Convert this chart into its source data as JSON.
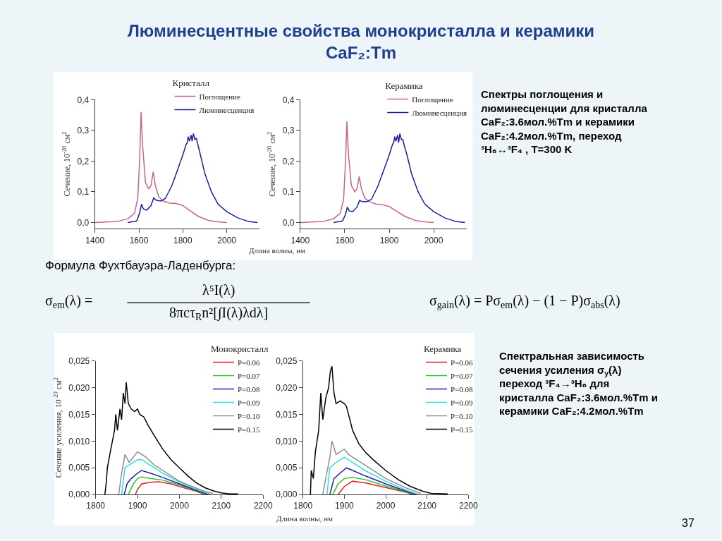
{
  "chart_data": [
    {
      "type": "other",
      "title": "Люминесцентные свойства монокристалла и керамики\nCaF₂:Tm",
      "annotations": [
        "Спектры поглощения и люминесценции для кристалла CaF₂:3.6мол.%Tm и керамики CaF₂:4.2мол.%Tm, переход ³H₆↔³F₄ , T=300 K",
        "Формула Фухтбауэра-Ладенбурга:",
        "σ$_{em}$(λ) =",
        "λ⁵I(λ)",
        "8πcτ$_{R}$n²[∫I(λ)λdλ]",
        "σ$_{gain}$(λ) = Pσ$_{em}$(λ) − (1 − P)σ$_{abs}$(λ)",
        "Спектральная зависимость сечения усиления σ$_{у}$(λ) переход ³F₄→³H₆ для кристалла CaF₂:3.6мол.%Tm и керамики CaF₂:4.2мол.%Tm",
        "37"
      ]
    },
    {
      "type": "line",
      "xlabel": "Длина волны, нм",
      "ylabel": "Сечение, 10$^{-20}$ см$^{2}$",
      "legend_title": "Кристалл",
      "legend": "top right",
      "xlim": [
        1400,
        2150
      ],
      "ylim": [
        -0.02,
        0.4
      ],
      "xticks": [
        1400,
        1600,
        1800,
        2000
      ],
      "yticks": [
        {
          "value": 0,
          "label": "0,0"
        },
        {
          "value": 0.1,
          "label": "0,1"
        },
        {
          "value": 0.2,
          "label": "0,2"
        },
        {
          "value": 0.3,
          "label": "0,3"
        },
        {
          "value": 0.4,
          "label": "0,4"
        }
      ],
      "series": [
        {
          "name": "Поглощение",
          "color": "#c8648c",
          "x": [
            1400,
            1500,
            1550,
            1580,
            1595,
            1603,
            1610,
            1617,
            1630,
            1645,
            1655,
            1665,
            1675,
            1690,
            1710,
            1740,
            1770,
            1800,
            1830,
            1870,
            1920,
            1960,
            2000
          ],
          "values": [
            0,
            0.003,
            0.012,
            0.03,
            0.08,
            0.2,
            0.36,
            0.25,
            0.13,
            0.11,
            0.12,
            0.165,
            0.12,
            0.085,
            0.07,
            0.063,
            0.062,
            0.055,
            0.04,
            0.02,
            0.006,
            0.002,
            0
          ]
        },
        {
          "name": "Люминесценция",
          "color": "#1c1c9c",
          "x": [
            1550,
            1590,
            1603,
            1612,
            1620,
            1635,
            1655,
            1667,
            1680,
            1700,
            1720,
            1750,
            1780,
            1800,
            1815,
            1820,
            1825,
            1830,
            1838,
            1842,
            1848,
            1855,
            1862,
            1868,
            1880,
            1900,
            1930,
            1960,
            2000,
            2050,
            2100,
            2140
          ],
          "values": [
            0,
            0.005,
            0.03,
            0.06,
            0.045,
            0.04,
            0.055,
            0.08,
            0.072,
            0.07,
            0.078,
            0.12,
            0.18,
            0.22,
            0.255,
            0.26,
            0.28,
            0.265,
            0.285,
            0.265,
            0.29,
            0.27,
            0.275,
            0.255,
            0.22,
            0.16,
            0.1,
            0.06,
            0.035,
            0.015,
            0.003,
            0
          ]
        }
      ]
    },
    {
      "type": "line",
      "ylabel": "Сечение, 10$^{-20}$ см$^{2}$",
      "legend_title": "Керамика",
      "legend": "top right",
      "xlim": [
        1400,
        2150
      ],
      "ylim": [
        -0.02,
        0.4
      ],
      "xticks": [
        1400,
        1600,
        1800,
        2000
      ],
      "yticks": [
        {
          "value": 0,
          "label": "0,0"
        },
        {
          "value": 0.1,
          "label": "0,1"
        },
        {
          "value": 0.2,
          "label": "0,2"
        },
        {
          "value": 0.3,
          "label": "0,3"
        },
        {
          "value": 0.4,
          "label": "0,4"
        }
      ],
      "series": [
        {
          "name": "Поглощение",
          "color": "#c8648c",
          "x": [
            1400,
            1500,
            1550,
            1580,
            1595,
            1603,
            1610,
            1617,
            1630,
            1645,
            1655,
            1665,
            1675,
            1690,
            1710,
            1740,
            1770,
            1800,
            1830,
            1870,
            1920,
            1960,
            2000
          ],
          "values": [
            0,
            0.003,
            0.012,
            0.03,
            0.075,
            0.19,
            0.33,
            0.22,
            0.12,
            0.1,
            0.11,
            0.15,
            0.11,
            0.08,
            0.068,
            0.06,
            0.058,
            0.052,
            0.038,
            0.02,
            0.006,
            0.002,
            0
          ]
        },
        {
          "name": "Люминесценция",
          "color": "#1c1c9c",
          "x": [
            1550,
            1590,
            1603,
            1612,
            1620,
            1635,
            1655,
            1667,
            1680,
            1700,
            1720,
            1750,
            1780,
            1800,
            1815,
            1820,
            1825,
            1830,
            1838,
            1842,
            1848,
            1855,
            1862,
            1868,
            1880,
            1900,
            1930,
            1960,
            2000,
            2050,
            2100,
            2140
          ],
          "values": [
            0,
            0.005,
            0.025,
            0.05,
            0.038,
            0.035,
            0.05,
            0.072,
            0.068,
            0.068,
            0.075,
            0.12,
            0.18,
            0.22,
            0.255,
            0.26,
            0.28,
            0.265,
            0.285,
            0.26,
            0.29,
            0.27,
            0.27,
            0.25,
            0.22,
            0.16,
            0.1,
            0.06,
            0.035,
            0.015,
            0.003,
            0
          ]
        }
      ]
    },
    {
      "type": "line",
      "ylabel": "Сечение усиления, 10$^{-20}$ см$^{2}$",
      "legend_title": "Монокристалл",
      "legend": "top right",
      "xlim": [
        1800,
        2200
      ],
      "ylim": [
        0,
        0.025
      ],
      "xticks": [
        1800,
        1900,
        2000,
        2100,
        2200
      ],
      "yticks": [
        {
          "value": 0,
          "label": "0,000"
        },
        {
          "value": 0.005,
          "label": "0,005"
        },
        {
          "value": 0.01,
          "label": "0,010"
        },
        {
          "value": 0.015,
          "label": "0,015"
        },
        {
          "value": 0.02,
          "label": "0,020"
        },
        {
          "value": 0.025,
          "label": "0,025"
        }
      ],
      "series": [
        {
          "name": "P=0.06",
          "color": "#e02020",
          "x": [
            1895,
            1900,
            1910,
            1930,
            1950,
            1980,
            2000,
            2040,
            2060
          ],
          "values": [
            0,
            0.001,
            0.002,
            0.0023,
            0.0024,
            0.002,
            0.0015,
            0.0006,
            0
          ]
        },
        {
          "name": "P=0.07",
          "color": "#30c030",
          "x": [
            1878,
            1890,
            1900,
            1910,
            1930,
            1960,
            2000,
            2040,
            2065
          ],
          "values": [
            0,
            0.002,
            0.003,
            0.0033,
            0.003,
            0.0027,
            0.0018,
            0.0007,
            0
          ]
        },
        {
          "name": "P=0.08",
          "color": "#2020b0",
          "x": [
            1868,
            1875,
            1885,
            1900,
            1910,
            1930,
            1960,
            2000,
            2040,
            2070
          ],
          "values": [
            0,
            0.002,
            0.003,
            0.004,
            0.0045,
            0.004,
            0.0032,
            0.002,
            0.0008,
            0
          ]
        },
        {
          "name": "P=0.09",
          "color": "#30e0e0",
          "x": [
            1862,
            1870,
            1880,
            1900,
            1910,
            1930,
            1960,
            2000,
            2040,
            2075
          ],
          "values": [
            0,
            0.005,
            0.0055,
            0.0065,
            0.0065,
            0.0055,
            0.004,
            0.0023,
            0.001,
            0
          ]
        },
        {
          "name": "P=0.10",
          "color": "#909090",
          "x": [
            1855,
            1862,
            1870,
            1880,
            1890,
            1900,
            1910,
            1920,
            1940,
            1960,
            1980,
            2000,
            2030,
            2060,
            2080
          ],
          "values": [
            0,
            0.004,
            0.0075,
            0.006,
            0.007,
            0.008,
            0.0075,
            0.007,
            0.0055,
            0.0045,
            0.0035,
            0.0025,
            0.0015,
            0.0006,
            0.0002
          ]
        },
        {
          "name": "P=0.15",
          "color": "#000000",
          "x": [
            1822,
            1825,
            1828,
            1835,
            1840,
            1845,
            1848,
            1852,
            1858,
            1862,
            1866,
            1870,
            1873,
            1878,
            1885,
            1893,
            1900,
            1905,
            1915,
            1925,
            1940,
            1960,
            1980,
            2000,
            2020,
            2040,
            2060,
            2080,
            2100,
            2120,
            2140
          ],
          "values": [
            0,
            0.002,
            0.005,
            0.008,
            0.01,
            0.012,
            0.015,
            0.012,
            0.016,
            0.014,
            0.019,
            0.017,
            0.021,
            0.017,
            0.016,
            0.0155,
            0.016,
            0.015,
            0.0145,
            0.013,
            0.011,
            0.0085,
            0.0065,
            0.005,
            0.0035,
            0.0022,
            0.0013,
            0.0007,
            0.0003,
            0.0001,
            0.0001
          ]
        }
      ]
    },
    {
      "type": "line",
      "xlabel": "Длина волны, нм",
      "legend_title": "Керамика",
      "legend": "top right",
      "xlim": [
        1800,
        2200
      ],
      "ylim": [
        0,
        0.025
      ],
      "xticks": [
        1800,
        1900,
        2000,
        2100,
        2200
      ],
      "yticks": [
        {
          "value": 0,
          "label": "0,000"
        },
        {
          "value": 0.005,
          "label": "0,005"
        },
        {
          "value": 0.01,
          "label": "0,010"
        },
        {
          "value": 0.015,
          "label": "0,015"
        },
        {
          "value": 0.02,
          "label": "0,020"
        },
        {
          "value": 0.025,
          "label": "0,025"
        }
      ],
      "series": [
        {
          "name": "P=0.06",
          "color": "#e02020",
          "x": [
            1885,
            1900,
            1920,
            1950,
            2000,
            2050,
            2065
          ],
          "values": [
            0,
            0.0015,
            0.0025,
            0.0022,
            0.0013,
            0.0004,
            0
          ]
        },
        {
          "name": "P=0.07",
          "color": "#30c030",
          "x": [
            1872,
            1885,
            1900,
            1920,
            1950,
            2000,
            2050,
            2070
          ],
          "values": [
            0,
            0.002,
            0.003,
            0.0032,
            0.0028,
            0.0016,
            0.0005,
            0
          ]
        },
        {
          "name": "P=0.08",
          "color": "#2020b0",
          "x": [
            1865,
            1875,
            1890,
            1905,
            1920,
            1950,
            2000,
            2050,
            2075
          ],
          "values": [
            0,
            0.003,
            0.004,
            0.005,
            0.0045,
            0.0035,
            0.002,
            0.0006,
            0
          ]
        },
        {
          "name": "P=0.09",
          "color": "#30e0e0",
          "x": [
            1858,
            1865,
            1880,
            1900,
            1920,
            1950,
            2000,
            2050,
            2080
          ],
          "values": [
            0,
            0.005,
            0.006,
            0.007,
            0.006,
            0.0045,
            0.0025,
            0.0008,
            0
          ]
        },
        {
          "name": "P=0.10",
          "color": "#909090",
          "x": [
            1848,
            1855,
            1865,
            1870,
            1880,
            1900,
            1910,
            1920,
            1950,
            2000,
            2050,
            2085
          ],
          "values": [
            0,
            0.003,
            0.007,
            0.01,
            0.0075,
            0.0085,
            0.0075,
            0.007,
            0.0055,
            0.003,
            0.0012,
            0.0002
          ]
        },
        {
          "name": "P=0.15",
          "color": "#000000",
          "x": [
            1818,
            1820,
            1825,
            1830,
            1838,
            1843,
            1848,
            1855,
            1862,
            1866,
            1870,
            1875,
            1880,
            1890,
            1900,
            1905,
            1910,
            1920,
            1935,
            1950,
            1970,
            2000,
            2030,
            2060,
            2090,
            2110,
            2150
          ],
          "values": [
            0,
            0.0045,
            0.003,
            0.008,
            0.012,
            0.019,
            0.014,
            0.018,
            0.02,
            0.023,
            0.024,
            0.019,
            0.017,
            0.0175,
            0.017,
            0.0165,
            0.015,
            0.012,
            0.0095,
            0.008,
            0.0065,
            0.0045,
            0.0028,
            0.0015,
            0.0006,
            0.0002,
            0.0001
          ]
        }
      ]
    }
  ]
}
